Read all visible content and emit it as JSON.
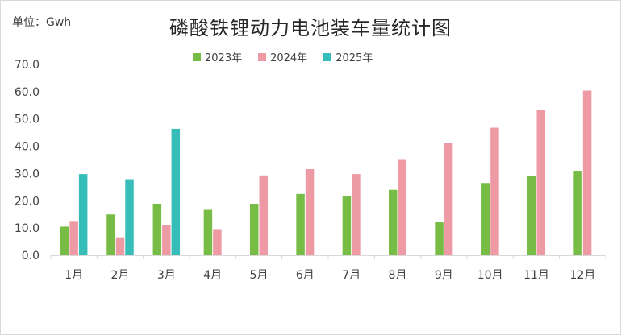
{
  "unit_label": "单位：Gwh",
  "title": "磷酸铁锂动力电池装车量统计图",
  "chart_data": {
    "type": "bar",
    "title": "磷酸铁锂动力电池装车量统计图",
    "ylim": [
      0,
      70
    ],
    "yticks": [
      "0.0",
      "10.0",
      "20.0",
      "30.0",
      "40.0",
      "50.0",
      "60.0",
      "70.0"
    ],
    "grid": false,
    "legend_position": "top",
    "categories": [
      "1月",
      "2月",
      "3月",
      "4月",
      "5月",
      "6月",
      "7月",
      "8月",
      "9月",
      "10月",
      "11月",
      "12月"
    ],
    "series": [
      {
        "name": "2023年",
        "color": "#77bd45",
        "values": [
          10.5,
          15.0,
          18.9,
          16.7,
          18.9,
          22.5,
          21.6,
          24.0,
          12.1,
          26.5,
          29.0,
          31.0
        ]
      },
      {
        "name": "2024年",
        "color": "#ee9aa5",
        "values": [
          12.3,
          6.6,
          11.0,
          9.6,
          29.3,
          31.6,
          29.8,
          35.0,
          41.1,
          46.8,
          53.2,
          60.4
        ]
      },
      {
        "name": "2025年",
        "color": "#36bdb7",
        "values": [
          29.8,
          27.9,
          46.4,
          null,
          null,
          null,
          null,
          null,
          null,
          null,
          null,
          null
        ]
      }
    ]
  }
}
